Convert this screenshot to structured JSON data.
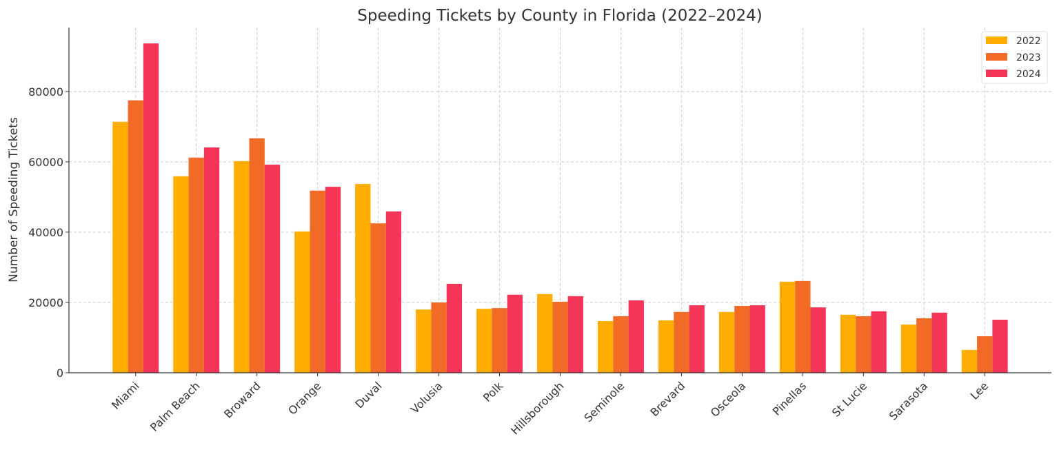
{
  "chart_data": {
    "type": "bar",
    "title": "Speeding Tickets by County in Florida (2022–2024)",
    "xlabel": "",
    "ylabel": "Number of Speeding Tickets",
    "ylim": [
      0,
      98200
    ],
    "yticks": [
      0,
      20000,
      40000,
      60000,
      80000
    ],
    "grid": true,
    "legend_position": "top-right",
    "categories": [
      "Miami",
      "Palm Beach",
      "Broward",
      "Orange",
      "Duval",
      "Volusia",
      "Polk",
      "Hillsborough",
      "Seminole",
      "Brevard",
      "Osceola",
      "Pinellas",
      "St Lucie",
      "Sarasota",
      "Lee"
    ],
    "series": [
      {
        "name": "2022",
        "color": "#FFAE00",
        "values": [
          71400,
          55900,
          60200,
          40200,
          53700,
          18000,
          18200,
          22400,
          14700,
          14900,
          17300,
          25900,
          16500,
          13700,
          6500
        ]
      },
      {
        "name": "2023",
        "color": "#F26B26",
        "values": [
          77500,
          61200,
          66700,
          51800,
          42500,
          20000,
          18400,
          20200,
          16100,
          17300,
          19000,
          26100,
          16100,
          15500,
          10400
        ]
      },
      {
        "name": "2024",
        "color": "#F53557",
        "values": [
          93700,
          64100,
          59200,
          52900,
          45900,
          25300,
          22200,
          21800,
          20600,
          19200,
          19200,
          18600,
          17500,
          17100,
          15100
        ]
      }
    ]
  }
}
